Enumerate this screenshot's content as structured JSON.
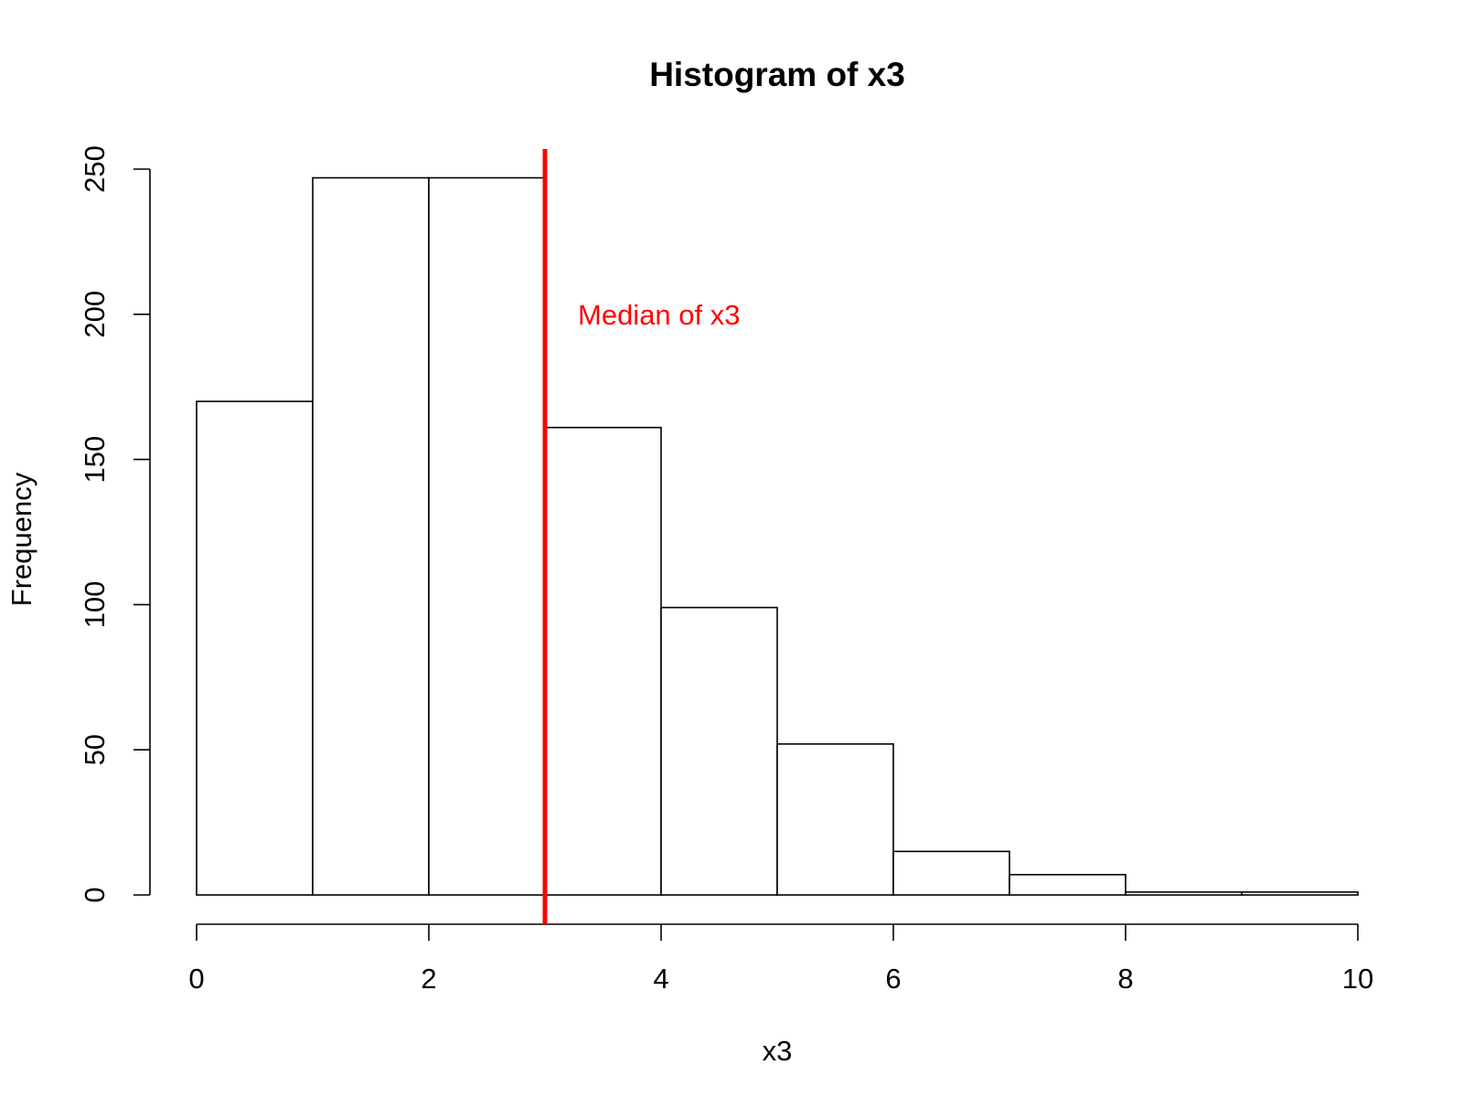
{
  "chart_data": {
    "type": "histogram",
    "title": "Histogram of x3",
    "x_label": "x3",
    "y_label": "Frequency",
    "bins": [
      0,
      1,
      2,
      3,
      4,
      5,
      6,
      7,
      8,
      9,
      10
    ],
    "values": [
      170,
      247,
      247,
      161,
      99,
      52,
      15,
      7,
      1,
      1
    ],
    "color": "#ffffff",
    "xlim": [
      0,
      10
    ],
    "xticks": [
      0,
      2,
      4,
      6,
      8,
      10
    ],
    "ylim": [
      0,
      250
    ],
    "yticks": [
      0,
      50,
      100,
      150,
      200,
      250
    ],
    "median": 3,
    "median_label": "Median of x3",
    "median_color": "#ff0000"
  }
}
